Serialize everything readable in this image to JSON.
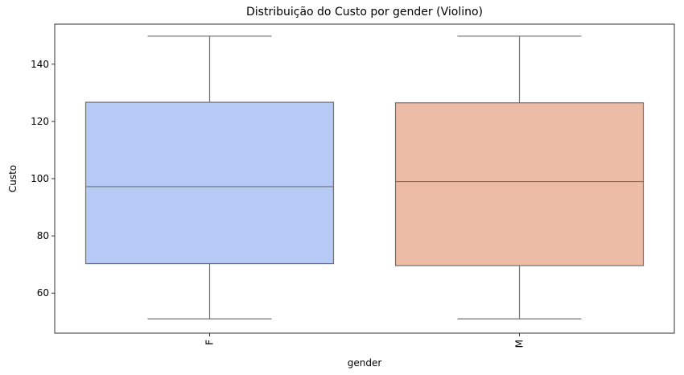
{
  "chart_data": {
    "type": "boxplot",
    "title": "Distribuição do Custo por gender (Violino)",
    "xlabel": "gender",
    "ylabel": "Custo",
    "ylim": [
      46,
      154
    ],
    "yticks": [
      60,
      80,
      100,
      120,
      140
    ],
    "categories": [
      "F",
      "M"
    ],
    "boxes": [
      {
        "category": "F",
        "whislo": 51,
        "q1": 70.3,
        "med": 97.2,
        "q3": 126.7,
        "whishi": 149.8,
        "color": "#b5caf5"
      },
      {
        "category": "M",
        "whislo": 51,
        "q1": 69.6,
        "med": 99.0,
        "q3": 126.5,
        "whishi": 149.8,
        "color": "#edbca6"
      }
    ],
    "line_color": "#707070",
    "grid": false,
    "x_tick_rotation": "vertical"
  }
}
